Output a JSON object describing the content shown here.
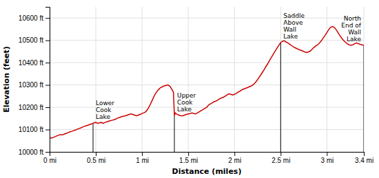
{
  "chart_data": {
    "type": "line",
    "xlabel": "Distance (miles)",
    "ylabel": "Elevation (feet)",
    "color": "#cc0000",
    "grid": true,
    "xlim": [
      0,
      3.4
    ],
    "ylim": [
      10000,
      10650
    ],
    "xticks": [
      {
        "value": 0,
        "label": "0 mi"
      },
      {
        "value": 0.5,
        "label": "0.5 mi"
      },
      {
        "value": 1.0,
        "label": "1 mi"
      },
      {
        "value": 1.5,
        "label": "1.5 mi"
      },
      {
        "value": 2.0,
        "label": "2 mi"
      },
      {
        "value": 2.5,
        "label": "2.5 mi"
      },
      {
        "value": 3.0,
        "label": "3 mi"
      },
      {
        "value": 3.4,
        "label": "3.4 mi"
      }
    ],
    "yticks": [
      {
        "value": 10000,
        "label": "10000 ft"
      },
      {
        "value": 10100,
        "label": "10100 ft"
      },
      {
        "value": 10200,
        "label": "10200 ft"
      },
      {
        "value": 10300,
        "label": "10300 ft"
      },
      {
        "value": 10400,
        "label": "10400 ft"
      },
      {
        "value": 10500,
        "label": "10500 ft"
      },
      {
        "value": 10600,
        "label": "10600 ft"
      }
    ],
    "annotations": [
      {
        "x": 0.47,
        "y": 10128,
        "text": "Lower\nCook\nLake"
      },
      {
        "x": 1.35,
        "y": 10162,
        "text": "Upper\nCook\nLake"
      },
      {
        "x": 2.5,
        "y": 10490,
        "text": "Saddle\nAbove\nWall\nLake"
      },
      {
        "x": 3.4,
        "y": 10478,
        "text": "North\nEnd of\nWall\nLake"
      }
    ],
    "x": [
      0.0,
      0.02,
      0.04,
      0.06,
      0.08,
      0.1,
      0.12,
      0.14,
      0.16,
      0.18,
      0.2,
      0.22,
      0.24,
      0.26,
      0.28,
      0.3,
      0.32,
      0.34,
      0.36,
      0.38,
      0.4,
      0.42,
      0.44,
      0.46,
      0.47,
      0.48,
      0.5,
      0.52,
      0.54,
      0.56,
      0.58,
      0.6,
      0.62,
      0.64,
      0.66,
      0.68,
      0.7,
      0.72,
      0.74,
      0.76,
      0.78,
      0.8,
      0.82,
      0.84,
      0.86,
      0.88,
      0.9,
      0.92,
      0.94,
      0.96,
      0.98,
      1.0,
      1.02,
      1.04,
      1.06,
      1.08,
      1.1,
      1.12,
      1.14,
      1.16,
      1.18,
      1.2,
      1.22,
      1.24,
      1.26,
      1.28,
      1.3,
      1.32,
      1.34,
      1.35,
      1.36,
      1.38,
      1.4,
      1.42,
      1.44,
      1.46,
      1.48,
      1.5,
      1.52,
      1.54,
      1.56,
      1.58,
      1.6,
      1.62,
      1.64,
      1.66,
      1.68,
      1.7,
      1.72,
      1.74,
      1.76,
      1.78,
      1.8,
      1.82,
      1.84,
      1.86,
      1.88,
      1.9,
      1.92,
      1.94,
      1.96,
      1.98,
      2.0,
      2.02,
      2.04,
      2.06,
      2.08,
      2.1,
      2.12,
      2.14,
      2.16,
      2.18,
      2.2,
      2.22,
      2.24,
      2.26,
      2.28,
      2.3,
      2.32,
      2.34,
      2.36,
      2.38,
      2.4,
      2.42,
      2.44,
      2.46,
      2.48,
      2.5,
      2.52,
      2.54,
      2.56,
      2.58,
      2.6,
      2.62,
      2.64,
      2.66,
      2.68,
      2.7,
      2.72,
      2.74,
      2.76,
      2.78,
      2.8,
      2.82,
      2.84,
      2.86,
      2.88,
      2.9,
      2.92,
      2.94,
      2.96,
      2.98,
      3.0,
      3.02,
      3.04,
      3.06,
      3.08,
      3.1,
      3.12,
      3.14,
      3.16,
      3.18,
      3.2,
      3.22,
      3.24,
      3.26,
      3.28,
      3.3,
      3.32,
      3.34,
      3.36,
      3.38,
      3.4
    ],
    "values": [
      10065,
      10062,
      10065,
      10068,
      10072,
      10075,
      10078,
      10076,
      10080,
      10083,
      10086,
      10090,
      10092,
      10095,
      10098,
      10102,
      10105,
      10108,
      10112,
      10115,
      10118,
      10120,
      10124,
      10126,
      10128,
      10130,
      10132,
      10128,
      10130,
      10132,
      10128,
      10132,
      10135,
      10138,
      10140,
      10142,
      10145,
      10148,
      10152,
      10155,
      10158,
      10160,
      10162,
      10165,
      10168,
      10170,
      10168,
      10165,
      10162,
      10165,
      10168,
      10172,
      10175,
      10180,
      10190,
      10205,
      10222,
      10240,
      10258,
      10270,
      10280,
      10288,
      10292,
      10296,
      10298,
      10300,
      10295,
      10282,
      10268,
      10162,
      10175,
      10168,
      10165,
      10162,
      10162,
      10165,
      10168,
      10170,
      10172,
      10175,
      10172,
      10170,
      10175,
      10180,
      10185,
      10190,
      10195,
      10200,
      10210,
      10215,
      10220,
      10225,
      10228,
      10232,
      10238,
      10242,
      10245,
      10250,
      10255,
      10260,
      10258,
      10255,
      10258,
      10262,
      10268,
      10272,
      10278,
      10282,
      10285,
      10288,
      10292,
      10295,
      10300,
      10308,
      10318,
      10330,
      10342,
      10355,
      10368,
      10382,
      10395,
      10410,
      10424,
      10438,
      10452,
      10465,
      10478,
      10490,
      10496,
      10498,
      10492,
      10488,
      10482,
      10476,
      10470,
      10466,
      10462,
      10458,
      10455,
      10452,
      10448,
      10445,
      10448,
      10452,
      10460,
      10468,
      10475,
      10480,
      10488,
      10498,
      10510,
      10522,
      10535,
      10548,
      10558,
      10562,
      10558,
      10548,
      10535,
      10522,
      10510,
      10500,
      10492,
      10485,
      10480,
      10478,
      10480,
      10485,
      10488,
      10485,
      10482,
      10480,
      10478
    ]
  }
}
